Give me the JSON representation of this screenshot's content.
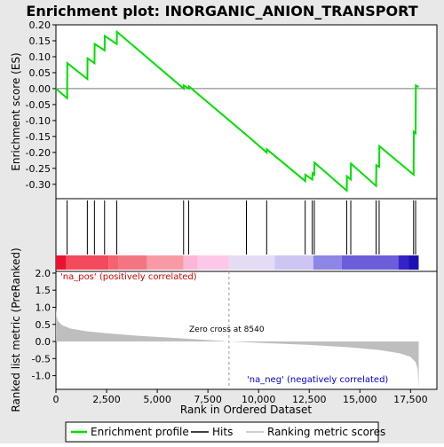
{
  "chart_data": {
    "type": "line",
    "title": "Enrichment plot: INORGANIC_ANION_TRANSPORT",
    "xlabel": "Rank in Ordered Dataset",
    "ylabel_top": "Enrichment score (ES)",
    "ylabel_bottom": "Ranked list metric (PreRanked)",
    "xlim": [
      0,
      18800
    ],
    "x_ticks": [
      0,
      2500,
      5000,
      7500,
      10000,
      12500,
      15000,
      17500
    ],
    "x_tick_labels": [
      "0",
      "2,500",
      "5,000",
      "7,500",
      "10,000",
      "12,500",
      "15,000",
      "17,500"
    ],
    "es_ylim": [
      -0.345,
      0.2
    ],
    "es_ticks": [
      0.2,
      0.15,
      0.1,
      0.05,
      0.0,
      -0.05,
      -0.1,
      -0.15,
      -0.2,
      -0.25,
      -0.3
    ],
    "es_tick_labels": [
      "0.20",
      "0.15",
      "0.10",
      "0.05",
      "0.00",
      "-0.05",
      "-0.10",
      "-0.15",
      "-0.20",
      "-0.25",
      "-0.30"
    ],
    "metric_ylim": [
      -1.4,
      2.05
    ],
    "metric_ticks": [
      2.0,
      1.5,
      1.0,
      0.5,
      0.0,
      -0.5,
      -1.0
    ],
    "metric_tick_labels": [
      "2.0",
      "1.5",
      "1.0",
      "0.5",
      "0.0",
      "-0.5",
      "-1.0"
    ],
    "enrichment_profile": [
      [
        0,
        0.0
      ],
      [
        550,
        -0.03
      ],
      [
        560,
        0.08
      ],
      [
        1550,
        0.03
      ],
      [
        1560,
        0.095
      ],
      [
        1900,
        0.08
      ],
      [
        1910,
        0.14
      ],
      [
        2400,
        0.12
      ],
      [
        2410,
        0.165
      ],
      [
        3000,
        0.14
      ],
      [
        3010,
        0.178
      ],
      [
        6300,
        0.0
      ],
      [
        6310,
        0.01
      ],
      [
        6550,
        0.0
      ],
      [
        6560,
        0.007
      ],
      [
        9400,
        -0.145
      ],
      [
        10400,
        -0.2
      ],
      [
        10410,
        -0.19
      ],
      [
        12300,
        -0.29
      ],
      [
        12310,
        -0.27
      ],
      [
        12650,
        -0.285
      ],
      [
        12660,
        -0.265
      ],
      [
        12750,
        -0.27
      ],
      [
        12760,
        -0.232
      ],
      [
        14350,
        -0.32
      ],
      [
        14360,
        -0.275
      ],
      [
        14550,
        -0.285
      ],
      [
        14560,
        -0.235
      ],
      [
        15800,
        -0.305
      ],
      [
        15810,
        -0.24
      ],
      [
        15950,
        -0.245
      ],
      [
        15960,
        -0.18
      ],
      [
        17650,
        -0.27
      ],
      [
        17660,
        -0.135
      ],
      [
        17750,
        -0.14
      ],
      [
        17760,
        0.01
      ],
      [
        17900,
        0.005
      ]
    ],
    "hits": [
      550,
      1550,
      1900,
      2400,
      3000,
      6300,
      6550,
      9400,
      10400,
      12300,
      12650,
      12750,
      14350,
      14550,
      15800,
      15950,
      17650,
      17750
    ],
    "zero_cross": 8540,
    "zero_cross_label": "Zero cross at 8540",
    "pos_label": "'na_pos' (positively correlated)",
    "neg_label": "'na_neg' (negatively correlated)",
    "metric_curve": [
      [
        0,
        1.0
      ],
      [
        30,
        0.75
      ],
      [
        100,
        0.6
      ],
      [
        300,
        0.48
      ],
      [
        700,
        0.38
      ],
      [
        1500,
        0.3
      ],
      [
        2500,
        0.24
      ],
      [
        4000,
        0.17
      ],
      [
        6000,
        0.1
      ],
      [
        8540,
        0.0
      ],
      [
        10500,
        -0.05
      ],
      [
        12500,
        -0.1
      ],
      [
        14500,
        -0.17
      ],
      [
        16000,
        -0.25
      ],
      [
        17000,
        -0.35
      ],
      [
        17500,
        -0.45
      ],
      [
        17750,
        -0.6
      ],
      [
        17850,
        -0.8
      ],
      [
        17900,
        -1.35
      ]
    ],
    "color_bar": [
      {
        "from": 0,
        "to": 500,
        "color": "#e8142e"
      },
      {
        "from": 500,
        "to": 2600,
        "color": "#f24a5a"
      },
      {
        "from": 2600,
        "to": 3100,
        "color": "#f36470"
      },
      {
        "from": 3100,
        "to": 4500,
        "color": "#f47582"
      },
      {
        "from": 4500,
        "to": 6300,
        "color": "#f79aa4"
      },
      {
        "from": 6300,
        "to": 7000,
        "color": "#fab8d6"
      },
      {
        "from": 7000,
        "to": 8540,
        "color": "#fcc8e8"
      },
      {
        "from": 8540,
        "to": 10800,
        "color": "#e6dbf5"
      },
      {
        "from": 10800,
        "to": 12700,
        "color": "#cdc6f2"
      },
      {
        "from": 12700,
        "to": 14100,
        "color": "#8c86e6"
      },
      {
        "from": 14100,
        "to": 16900,
        "color": "#6a5fd8"
      },
      {
        "from": 16900,
        "to": 17400,
        "color": "#3523c8"
      },
      {
        "from": 17400,
        "to": 17900,
        "color": "#1c10b4"
      }
    ],
    "legend": [
      {
        "label": "Enrichment profile",
        "color": "#00dd00"
      },
      {
        "label": "Hits",
        "color": "#000000"
      },
      {
        "label": "Ranking metric scores",
        "color": "#c0c0c0"
      }
    ],
    "colors": {
      "profile": "#00dd00",
      "metric_fill": "#bebebe",
      "pos_text": "#cc0000",
      "neg_text": "#0000cc",
      "background": "#e8e8e8"
    }
  }
}
